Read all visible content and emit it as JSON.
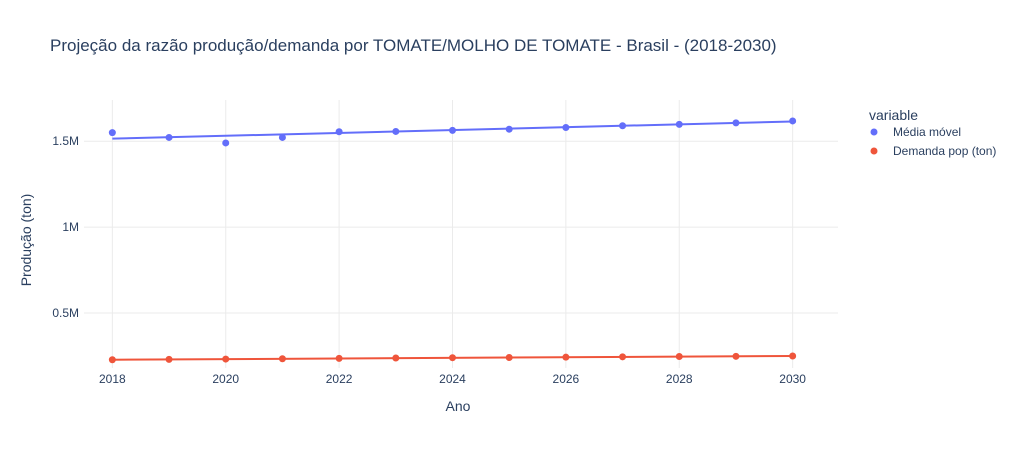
{
  "chart_data": {
    "type": "scatter",
    "title": "Projeção da razão produção/demanda por TOMATE/MOLHO DE TOMATE - Brasil - (2018-2030)",
    "xlabel": "Ano",
    "ylabel": "Produção (ton)",
    "xlim": [
      2017.5,
      2030.8
    ],
    "ylim": [
      180000,
      1740000
    ],
    "x_ticks": [
      2018,
      2020,
      2022,
      2024,
      2026,
      2028,
      2030
    ],
    "x_tick_labels": [
      "2018",
      "2020",
      "2022",
      "2024",
      "2026",
      "2028",
      "2030"
    ],
    "y_ticks": [
      500000,
      1000000,
      1500000
    ],
    "y_tick_labels": [
      "0.5M",
      "1M",
      "1.5M"
    ],
    "grid": true,
    "legend": {
      "title": "variable",
      "placement": "right"
    },
    "series": [
      {
        "name": "Média móvel",
        "color": "#636efa",
        "x": [
          2018,
          2019,
          2020,
          2021,
          2022,
          2023,
          2024,
          2025,
          2026,
          2027,
          2028,
          2029,
          2030
        ],
        "y": [
          1550000,
          1522000,
          1490000,
          1522000,
          1555000,
          1557000,
          1563000,
          1570000,
          1580000,
          1590000,
          1598000,
          1607000,
          1618000
        ],
        "trend": [
          [
            2018,
            1515000
          ],
          [
            2030,
            1615000
          ]
        ]
      },
      {
        "name": "Demanda pop (ton)",
        "color": "#ef553b",
        "x": [
          2018,
          2019,
          2020,
          2021,
          2022,
          2023,
          2024,
          2025,
          2026,
          2027,
          2028,
          2029,
          2030
        ],
        "y": [
          228000,
          230000,
          232000,
          234000,
          236000,
          238000,
          240000,
          241000,
          243000,
          245000,
          247000,
          248000,
          250000
        ],
        "trend": [
          [
            2018,
            228000
          ],
          [
            2030,
            250000
          ]
        ]
      }
    ]
  }
}
